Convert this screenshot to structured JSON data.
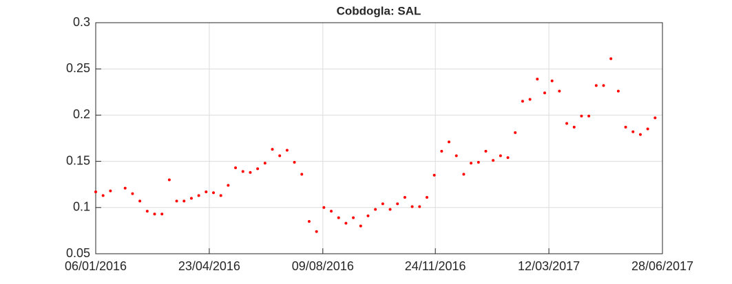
{
  "chart_data": {
    "type": "scatter",
    "title": "Cobdogla: SAL",
    "x": [
      "2016-01-06",
      "2016-01-13",
      "2016-01-20",
      "2016-02-03",
      "2016-02-10",
      "2016-02-17",
      "2016-02-24",
      "2016-03-02",
      "2016-03-09",
      "2016-03-16",
      "2016-03-23",
      "2016-03-30",
      "2016-04-06",
      "2016-04-13",
      "2016-04-20",
      "2016-04-27",
      "2016-05-04",
      "2016-05-11",
      "2016-05-18",
      "2016-05-25",
      "2016-06-01",
      "2016-06-08",
      "2016-06-15",
      "2016-06-22",
      "2016-06-29",
      "2016-07-06",
      "2016-07-13",
      "2016-07-20",
      "2016-07-27",
      "2016-08-03",
      "2016-08-10",
      "2016-08-17",
      "2016-08-24",
      "2016-08-31",
      "2016-09-07",
      "2016-09-14",
      "2016-09-21",
      "2016-09-28",
      "2016-10-05",
      "2016-10-12",
      "2016-10-19",
      "2016-10-26",
      "2016-11-02",
      "2016-11-09",
      "2016-11-16",
      "2016-11-23",
      "2016-11-30",
      "2016-12-07",
      "2016-12-14",
      "2016-12-21",
      "2016-12-28",
      "2017-01-04",
      "2017-01-11",
      "2017-01-18",
      "2017-01-25",
      "2017-02-01",
      "2017-02-08",
      "2017-02-15",
      "2017-02-22",
      "2017-03-01",
      "2017-03-08",
      "2017-03-15",
      "2017-03-22",
      "2017-03-29",
      "2017-04-05",
      "2017-04-12",
      "2017-04-19",
      "2017-04-26",
      "2017-05-03",
      "2017-05-10",
      "2017-05-17",
      "2017-05-24",
      "2017-05-31",
      "2017-06-07",
      "2017-06-14",
      "2017-06-21"
    ],
    "values": [
      0.117,
      0.113,
      0.118,
      0.121,
      0.115,
      0.107,
      0.096,
      0.093,
      0.093,
      0.13,
      0.107,
      0.107,
      0.11,
      0.113,
      0.117,
      0.116,
      0.113,
      0.124,
      0.143,
      0.139,
      0.138,
      0.142,
      0.148,
      0.163,
      0.156,
      0.162,
      0.149,
      0.136,
      0.085,
      0.074,
      0.1,
      0.096,
      0.089,
      0.083,
      0.089,
      0.08,
      0.091,
      0.098,
      0.104,
      0.098,
      0.104,
      0.111,
      0.101,
      0.101,
      0.111,
      0.135,
      0.161,
      0.171,
      0.156,
      0.136,
      0.148,
      0.149,
      0.161,
      0.151,
      0.156,
      0.154,
      0.181,
      0.215,
      0.217,
      0.239,
      0.224,
      0.237,
      0.226,
      0.191,
      0.187,
      0.199,
      0.199,
      0.232,
      0.232,
      0.261,
      0.226,
      0.187,
      0.182,
      0.179,
      0.185,
      0.197
    ],
    "color": "#ff0000",
    "xlim": [
      "2016-01-06",
      "2017-06-28"
    ],
    "xticks": [
      {
        "value": "2016-01-06",
        "label": "06/01/2016"
      },
      {
        "value": "2016-04-23",
        "label": "23/04/2016"
      },
      {
        "value": "2016-08-09",
        "label": "09/08/2016"
      },
      {
        "value": "2016-11-24",
        "label": "24/11/2016"
      },
      {
        "value": "2017-03-12",
        "label": "12/03/2017"
      },
      {
        "value": "2017-06-28",
        "label": "28/06/2017"
      }
    ],
    "ylim": [
      0.05,
      0.3
    ],
    "yticks": [
      0.05,
      0.1,
      0.15,
      0.2,
      0.25,
      0.3
    ],
    "grid": true
  }
}
